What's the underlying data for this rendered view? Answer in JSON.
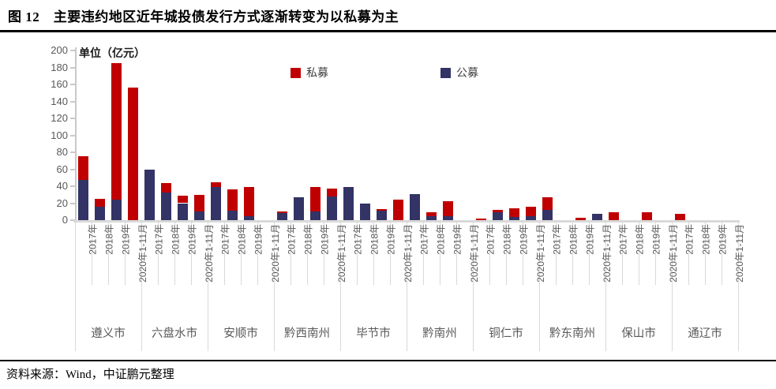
{
  "page": {
    "title": "图 12　主要违约地区近年城投债发行方式逐渐转变为以私募为主",
    "source": "资料来源：Wind，中证鹏元整理"
  },
  "colors": {
    "private_red": "#C00000",
    "public_navy": "#333366",
    "axis_line": "#D9D9D9",
    "tick_text": "#595959"
  },
  "chart_data": {
    "type": "bar",
    "stacked": true,
    "unit_label": "单位（亿元）",
    "ylim": [
      0,
      200
    ],
    "ytick_step": 20,
    "grid": false,
    "legend_position": "top-center",
    "legend": [
      {
        "label": "私募",
        "series": "private",
        "color": "#C00000"
      },
      {
        "label": "公募",
        "series": "public",
        "color": "#333366"
      }
    ],
    "x_year_labels": [
      "2017年",
      "2018年",
      "2019年",
      "2020年1-11月"
    ],
    "groups": [
      {
        "city": "遵义市",
        "public": [
          47,
          16,
          24,
          0
        ],
        "private": [
          28,
          9,
          161,
          156
        ]
      },
      {
        "city": "六盘水市",
        "public": [
          60,
          33,
          20,
          10
        ],
        "private": [
          0,
          11,
          9,
          20
        ]
      },
      {
        "city": "安顺市",
        "public": [
          39,
          11,
          5,
          0
        ],
        "private": [
          6,
          25,
          34,
          0
        ]
      },
      {
        "city": "黔西南州",
        "public": [
          8,
          27,
          10,
          28
        ],
        "private": [
          2,
          0,
          29,
          9
        ]
      },
      {
        "city": "毕节市",
        "public": [
          39,
          20,
          11,
          0
        ],
        "private": [
          0,
          0,
          2,
          24
        ]
      },
      {
        "city": "黔南州",
        "public": [
          31,
          5,
          5,
          0
        ],
        "private": [
          0,
          4,
          17,
          0
        ]
      },
      {
        "city": "铜仁市",
        "public": [
          0,
          9,
          4,
          5
        ],
        "private": [
          2,
          3,
          10,
          11
        ]
      },
      {
        "city": "黔东南州",
        "public": [
          12,
          0,
          0,
          7
        ],
        "private": [
          15,
          0,
          3,
          0
        ]
      },
      {
        "city": "保山市",
        "public": [
          0,
          0,
          0,
          0
        ],
        "private": [
          9,
          0,
          9,
          0
        ]
      },
      {
        "city": "通辽市",
        "public": [
          0,
          0,
          0,
          0
        ],
        "private": [
          7,
          0,
          0,
          0
        ]
      }
    ]
  }
}
